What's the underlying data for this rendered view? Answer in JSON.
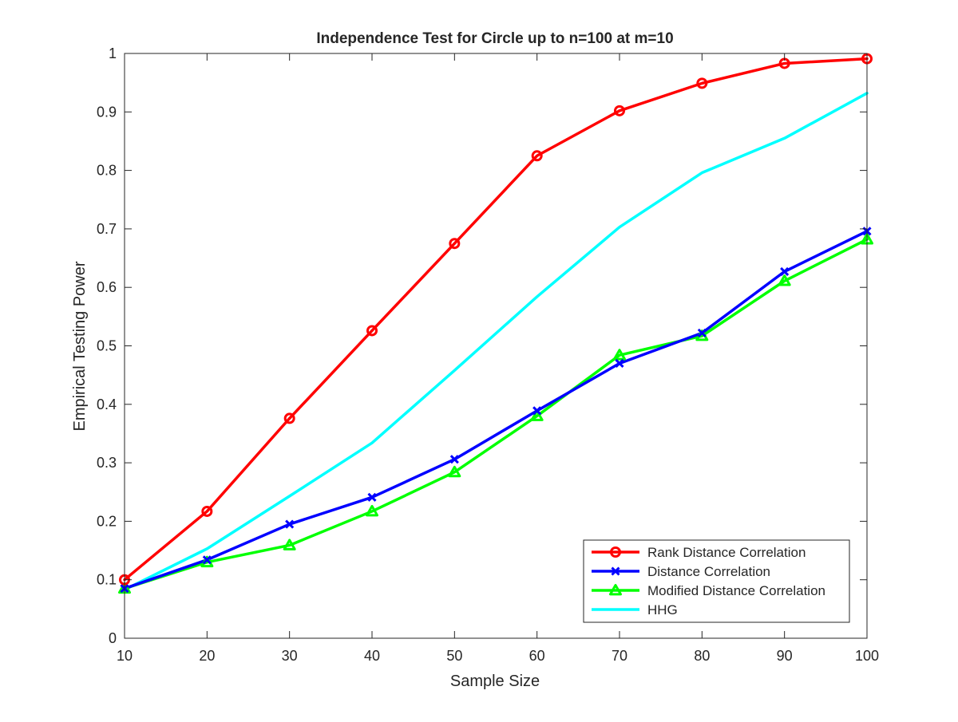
{
  "chart_data": {
    "type": "line",
    "title": "Independence Test for Circle up to n=100 at m=10",
    "xlabel": "Sample Size",
    "ylabel": "Empirical Testing Power",
    "xlim": [
      10,
      100
    ],
    "ylim": [
      0,
      1
    ],
    "x_ticks": [
      "10",
      "20",
      "30",
      "40",
      "50",
      "60",
      "70",
      "80",
      "90",
      "100"
    ],
    "y_ticks": [
      "0",
      "0.1",
      "0.2",
      "0.3",
      "0.4",
      "0.5",
      "0.6",
      "0.7",
      "0.8",
      "0.9",
      "1"
    ],
    "grid": false,
    "legend_position": "bottom-right",
    "x": [
      10,
      20,
      30,
      40,
      50,
      60,
      70,
      80,
      90,
      100
    ],
    "series": [
      {
        "name": "Rank Distance Correlation",
        "color": "#ff0000",
        "marker": "circle",
        "values": [
          0.1,
          0.217,
          0.376,
          0.526,
          0.675,
          0.825,
          0.902,
          0.949,
          0.983,
          0.991
        ]
      },
      {
        "name": "Distance Correlation",
        "color": "#0000ff",
        "marker": "x",
        "values": [
          0.085,
          0.134,
          0.195,
          0.241,
          0.306,
          0.389,
          0.47,
          0.522,
          0.627,
          0.696
        ]
      },
      {
        "name": "Modified Distance Correlation",
        "color": "#00ff00",
        "marker": "triangle",
        "values": [
          0.085,
          0.13,
          0.159,
          0.217,
          0.284,
          0.38,
          0.484,
          0.517,
          0.611,
          0.682
        ]
      },
      {
        "name": "HHG",
        "color": "#00ffff",
        "marker": "none",
        "values": [
          0.083,
          0.153,
          0.243,
          0.334,
          0.458,
          0.584,
          0.703,
          0.796,
          0.855,
          0.932
        ]
      }
    ]
  }
}
